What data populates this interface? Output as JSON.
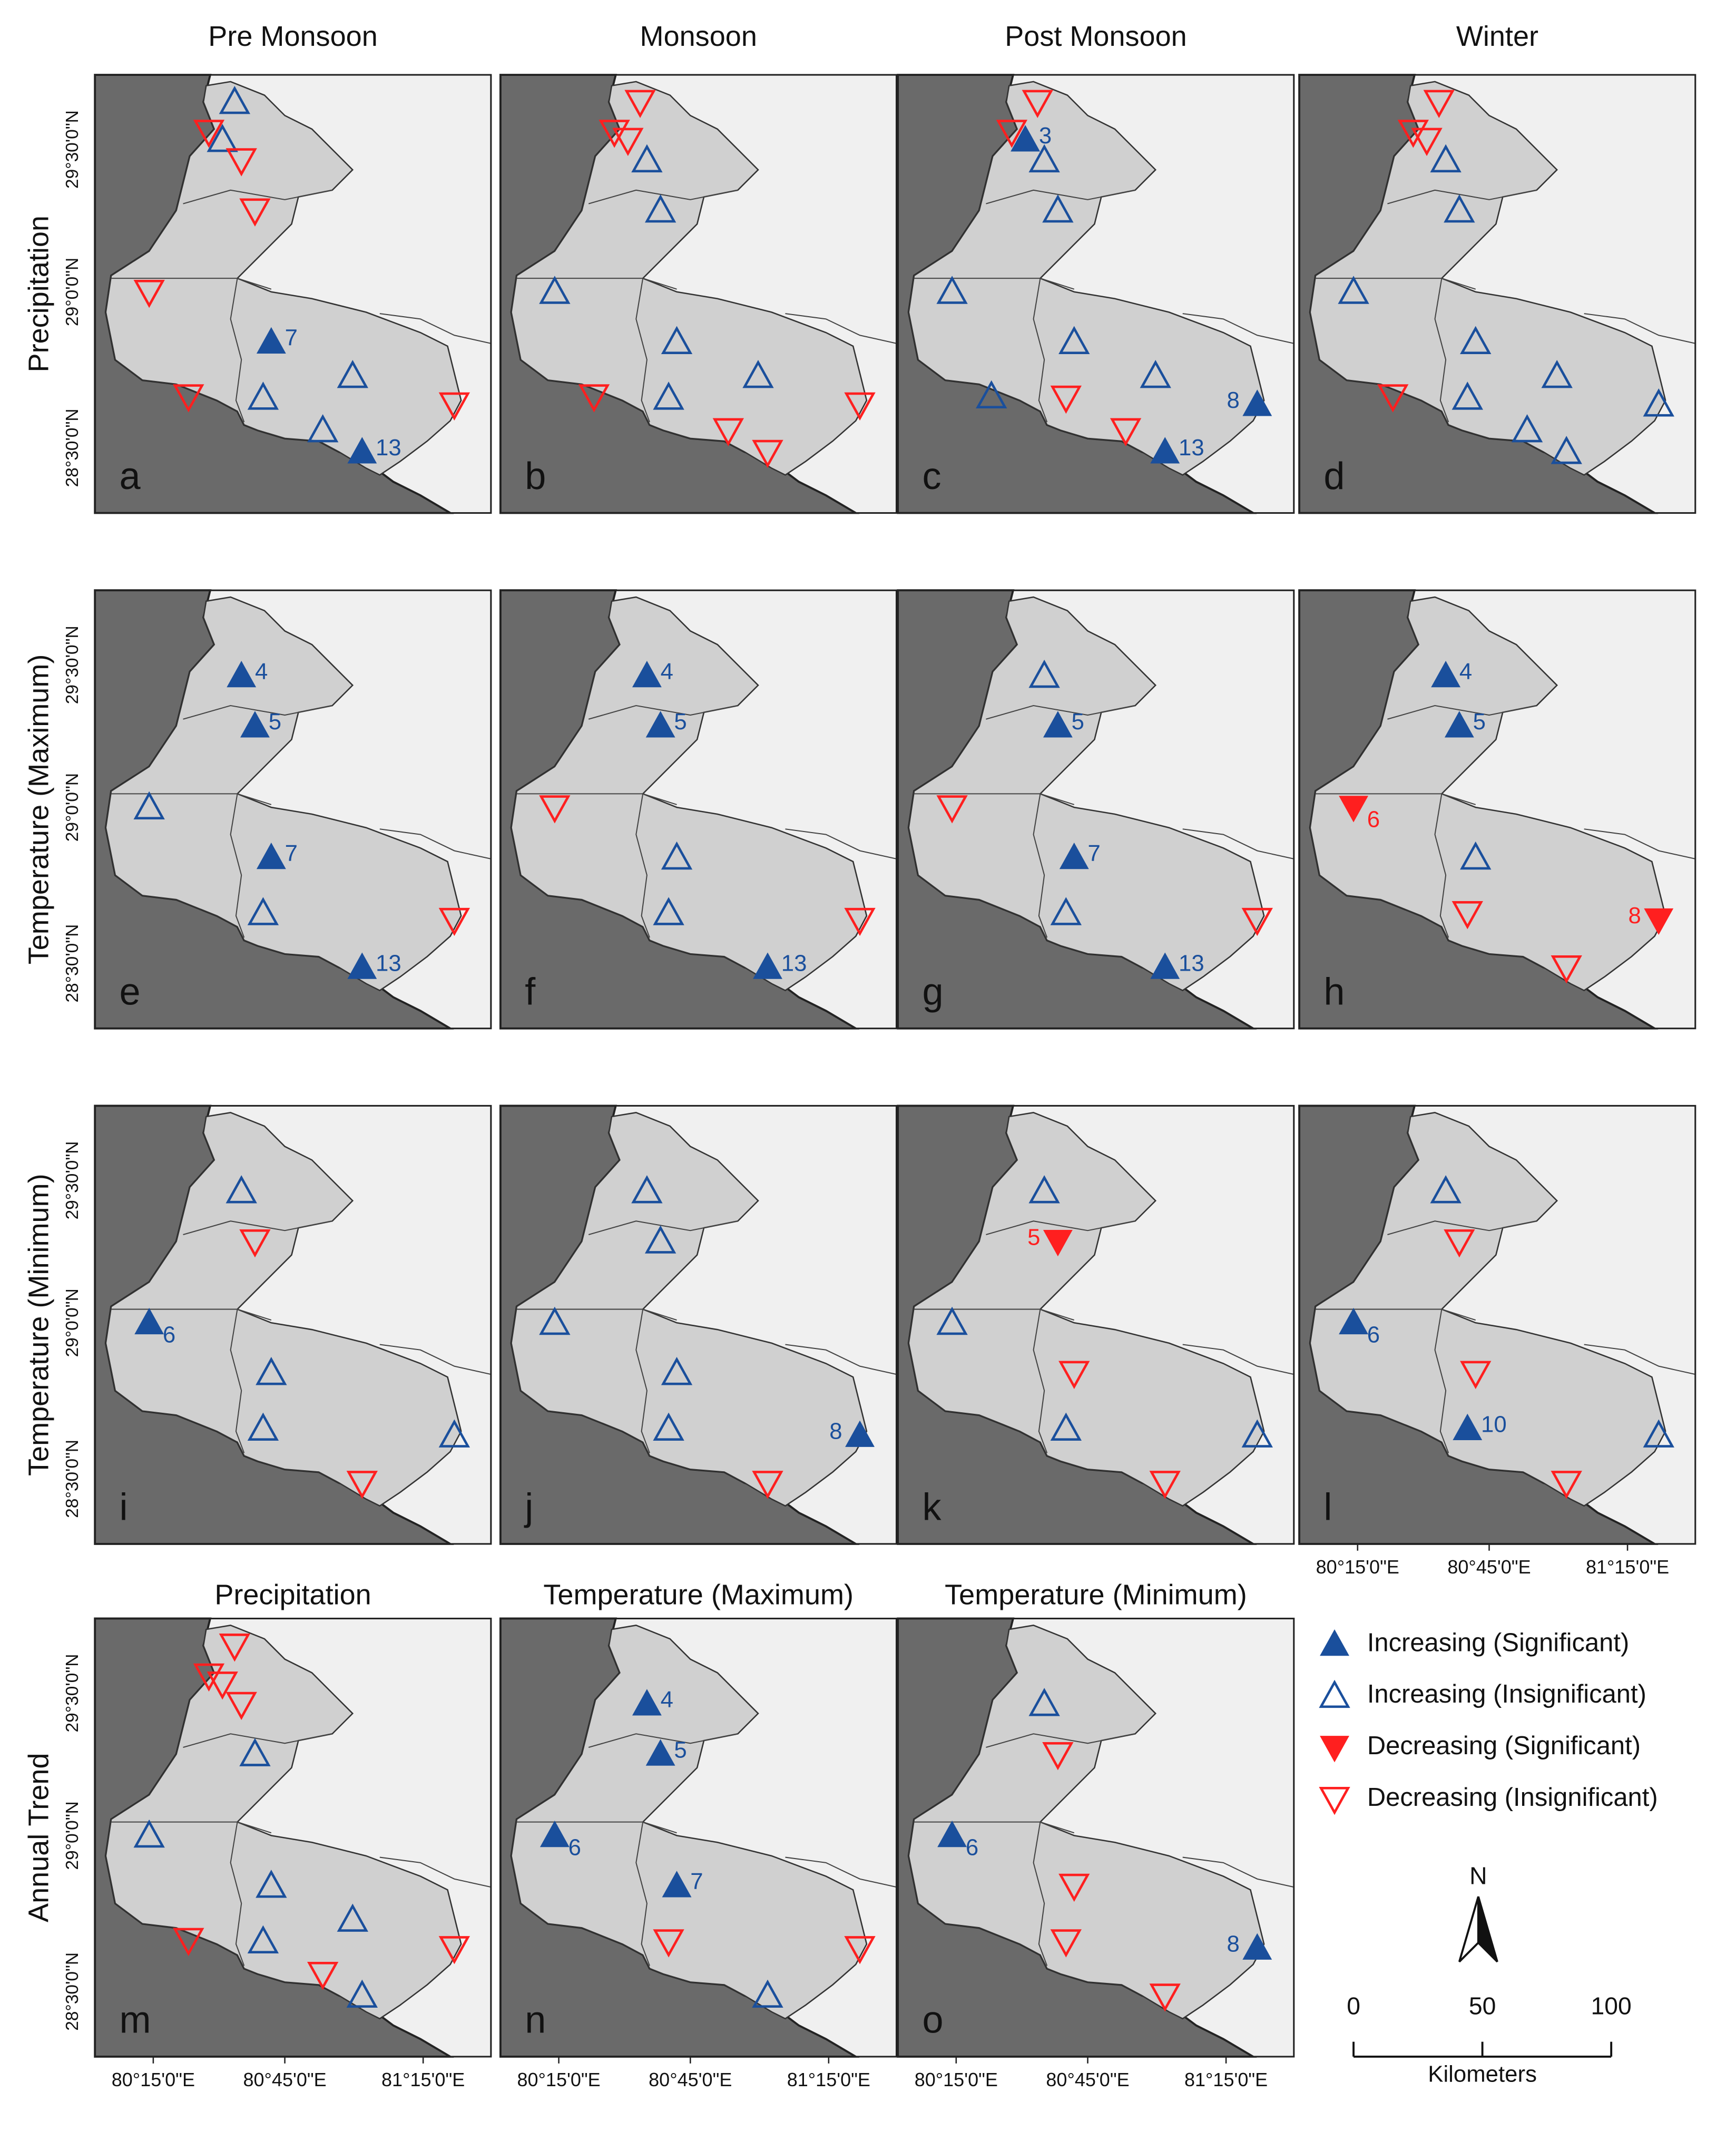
{
  "column_titles": [
    "Pre Monsoon",
    "Monsoon",
    "Post Monsoon",
    "Winter"
  ],
  "row_titles": [
    "Precipitation",
    "Temperature (Maximum)",
    "Temperature (Minimum)",
    "Annual Trend"
  ],
  "annual_titles": [
    "Precipitation",
    "Temperature (Maximum)",
    "Temperature (Minimum)"
  ],
  "lat_labels": [
    "29°30'0\"N",
    "29°0'0\"N",
    "28°30'0\"N"
  ],
  "lon_labels": [
    "80°15'0\"E",
    "80°45'0\"E",
    "81°15'0\"E"
  ],
  "colors": {
    "increasing": "#1a4f9c",
    "decreasing": "#ff1f1f"
  },
  "panels": [
    {
      "letter": "a",
      "markers": [
        {
          "trend": "increasing",
          "significant": false
        },
        {
          "trend": "decreasing",
          "significant": false
        },
        {
          "trend": "increasing",
          "significant": false
        },
        {
          "trend": "decreasing",
          "significant": false
        },
        {
          "trend": "decreasing",
          "significant": false
        },
        {
          "trend": "decreasing",
          "significant": false
        },
        {
          "trend": "increasing",
          "significant": true,
          "label": "7"
        },
        {
          "trend": "decreasing",
          "significant": false
        },
        {
          "trend": "increasing",
          "significant": false
        },
        {
          "trend": "increasing",
          "significant": false
        },
        {
          "trend": "increasing",
          "significant": false
        },
        {
          "trend": "increasing",
          "significant": true,
          "label": "13"
        },
        {
          "trend": "decreasing",
          "significant": false
        }
      ]
    },
    {
      "letter": "b",
      "markers": [
        {
          "trend": "decreasing",
          "significant": false
        },
        {
          "trend": "decreasing",
          "significant": false
        },
        {
          "trend": "decreasing",
          "significant": false
        },
        {
          "trend": "increasing",
          "significant": false
        },
        {
          "trend": "increasing",
          "significant": false
        },
        {
          "trend": "increasing",
          "significant": false
        },
        {
          "trend": "increasing",
          "significant": false
        },
        {
          "trend": "decreasing",
          "significant": false
        },
        {
          "trend": "increasing",
          "significant": false
        },
        {
          "trend": "increasing",
          "significant": false
        },
        {
          "trend": "decreasing",
          "significant": false
        },
        {
          "trend": "decreasing",
          "significant": false
        },
        {
          "trend": "decreasing",
          "significant": false
        }
      ]
    },
    {
      "letter": "c",
      "markers": [
        {
          "trend": "decreasing",
          "significant": false
        },
        {
          "trend": "decreasing",
          "significant": false
        },
        {
          "trend": "increasing",
          "significant": true,
          "label": "3"
        },
        {
          "trend": "increasing",
          "significant": false
        },
        {
          "trend": "increasing",
          "significant": false
        },
        {
          "trend": "increasing",
          "significant": false
        },
        {
          "trend": "increasing",
          "significant": false
        },
        {
          "trend": "increasing",
          "significant": false
        },
        {
          "trend": "decreasing",
          "significant": false
        },
        {
          "trend": "increasing",
          "significant": false
        },
        {
          "trend": "decreasing",
          "significant": false
        },
        {
          "trend": "increasing",
          "significant": true,
          "label": "13"
        },
        {
          "trend": "increasing",
          "significant": true,
          "label": "8"
        }
      ]
    },
    {
      "letter": "d",
      "markers": [
        {
          "trend": "decreasing",
          "significant": false
        },
        {
          "trend": "decreasing",
          "significant": false
        },
        {
          "trend": "decreasing",
          "significant": false
        },
        {
          "trend": "increasing",
          "significant": false
        },
        {
          "trend": "increasing",
          "significant": false
        },
        {
          "trend": "increasing",
          "significant": false
        },
        {
          "trend": "increasing",
          "significant": false
        },
        {
          "trend": "decreasing",
          "significant": false
        },
        {
          "trend": "increasing",
          "significant": false
        },
        {
          "trend": "increasing",
          "significant": false
        },
        {
          "trend": "increasing",
          "significant": false
        },
        {
          "trend": "increasing",
          "significant": false
        },
        {
          "trend": "increasing",
          "significant": false
        }
      ]
    },
    {
      "letter": "e",
      "markers": [
        null,
        null,
        null,
        {
          "trend": "increasing",
          "significant": true,
          "label": "4"
        },
        {
          "trend": "increasing",
          "significant": true,
          "label": "5"
        },
        {
          "trend": "increasing",
          "significant": false
        },
        {
          "trend": "increasing",
          "significant": true,
          "label": "7"
        },
        null,
        {
          "trend": "increasing",
          "significant": false
        },
        null,
        null,
        {
          "trend": "increasing",
          "significant": true,
          "label": "13"
        },
        {
          "trend": "decreasing",
          "significant": false
        }
      ]
    },
    {
      "letter": "f",
      "markers": [
        null,
        null,
        null,
        {
          "trend": "increasing",
          "significant": true,
          "label": "4"
        },
        {
          "trend": "increasing",
          "significant": true,
          "label": "5"
        },
        {
          "trend": "decreasing",
          "significant": false
        },
        {
          "trend": "increasing",
          "significant": false
        },
        null,
        {
          "trend": "increasing",
          "significant": false
        },
        null,
        null,
        {
          "trend": "increasing",
          "significant": true,
          "label": "13"
        },
        {
          "trend": "decreasing",
          "significant": false
        }
      ]
    },
    {
      "letter": "g",
      "markers": [
        null,
        null,
        null,
        {
          "trend": "increasing",
          "significant": false
        },
        {
          "trend": "increasing",
          "significant": true,
          "label": "5"
        },
        {
          "trend": "decreasing",
          "significant": false
        },
        {
          "trend": "increasing",
          "significant": true,
          "label": "7"
        },
        null,
        {
          "trend": "increasing",
          "significant": false
        },
        null,
        null,
        {
          "trend": "increasing",
          "significant": true,
          "label": "13"
        },
        {
          "trend": "decreasing",
          "significant": false
        }
      ]
    },
    {
      "letter": "h",
      "markers": [
        null,
        null,
        null,
        {
          "trend": "increasing",
          "significant": true,
          "label": "4"
        },
        {
          "trend": "increasing",
          "significant": true,
          "label": "5"
        },
        {
          "trend": "decreasing",
          "significant": true,
          "label": "6"
        },
        {
          "trend": "increasing",
          "significant": false
        },
        null,
        {
          "trend": "decreasing",
          "significant": false
        },
        null,
        null,
        {
          "trend": "decreasing",
          "significant": false
        },
        {
          "trend": "decreasing",
          "significant": true,
          "label": "8"
        }
      ]
    },
    {
      "letter": "i",
      "markers": [
        null,
        null,
        null,
        {
          "trend": "increasing",
          "significant": false
        },
        {
          "trend": "decreasing",
          "significant": false
        },
        {
          "trend": "increasing",
          "significant": true,
          "label": "6"
        },
        {
          "trend": "increasing",
          "significant": false
        },
        null,
        {
          "trend": "increasing",
          "significant": false
        },
        null,
        null,
        {
          "trend": "decreasing",
          "significant": false
        },
        {
          "trend": "increasing",
          "significant": false
        }
      ]
    },
    {
      "letter": "j",
      "markers": [
        null,
        null,
        null,
        {
          "trend": "increasing",
          "significant": false
        },
        {
          "trend": "increasing",
          "significant": false
        },
        {
          "trend": "increasing",
          "significant": false
        },
        {
          "trend": "increasing",
          "significant": false
        },
        null,
        {
          "trend": "increasing",
          "significant": false
        },
        null,
        null,
        {
          "trend": "decreasing",
          "significant": false
        },
        {
          "trend": "increasing",
          "significant": true,
          "label": "8"
        }
      ]
    },
    {
      "letter": "k",
      "markers": [
        null,
        null,
        null,
        {
          "trend": "increasing",
          "significant": false
        },
        {
          "trend": "decreasing",
          "significant": true,
          "label": "5"
        },
        {
          "trend": "increasing",
          "significant": false
        },
        {
          "trend": "decreasing",
          "significant": false
        },
        null,
        {
          "trend": "increasing",
          "significant": false
        },
        null,
        null,
        {
          "trend": "decreasing",
          "significant": false
        },
        {
          "trend": "increasing",
          "significant": false
        }
      ]
    },
    {
      "letter": "l",
      "markers": [
        null,
        null,
        null,
        {
          "trend": "increasing",
          "significant": false
        },
        {
          "trend": "decreasing",
          "significant": false
        },
        {
          "trend": "increasing",
          "significant": true,
          "label": "6"
        },
        {
          "trend": "decreasing",
          "significant": false
        },
        null,
        {
          "trend": "increasing",
          "significant": true,
          "label": "10"
        },
        null,
        null,
        {
          "trend": "decreasing",
          "significant": false
        },
        {
          "trend": "increasing",
          "significant": false
        }
      ]
    },
    {
      "letter": "m",
      "markers": [
        {
          "trend": "decreasing",
          "significant": false
        },
        {
          "trend": "decreasing",
          "significant": false
        },
        {
          "trend": "decreasing",
          "significant": false
        },
        {
          "trend": "decreasing",
          "significant": false
        },
        {
          "trend": "increasing",
          "significant": false
        },
        {
          "trend": "increasing",
          "significant": false
        },
        {
          "trend": "increasing",
          "significant": false
        },
        {
          "trend": "decreasing",
          "significant": false
        },
        {
          "trend": "increasing",
          "significant": false
        },
        {
          "trend": "increasing",
          "significant": false
        },
        {
          "trend": "decreasing",
          "significant": false
        },
        {
          "trend": "increasing",
          "significant": false
        },
        {
          "trend": "decreasing",
          "significant": false
        }
      ]
    },
    {
      "letter": "n",
      "markers": [
        null,
        null,
        null,
        {
          "trend": "increasing",
          "significant": true,
          "label": "4"
        },
        {
          "trend": "increasing",
          "significant": true,
          "label": "5"
        },
        {
          "trend": "increasing",
          "significant": true,
          "label": "6"
        },
        {
          "trend": "increasing",
          "significant": true,
          "label": "7"
        },
        null,
        {
          "trend": "decreasing",
          "significant": false
        },
        null,
        null,
        {
          "trend": "increasing",
          "significant": false
        },
        {
          "trend": "decreasing",
          "significant": false
        }
      ]
    },
    {
      "letter": "o",
      "markers": [
        null,
        null,
        null,
        {
          "trend": "increasing",
          "significant": false
        },
        {
          "trend": "decreasing",
          "significant": false
        },
        {
          "trend": "increasing",
          "significant": true,
          "label": "6"
        },
        {
          "trend": "decreasing",
          "significant": false
        },
        null,
        {
          "trend": "decreasing",
          "significant": false
        },
        null,
        null,
        {
          "trend": "decreasing",
          "significant": false
        },
        {
          "trend": "increasing",
          "significant": true,
          "label": "8"
        }
      ]
    }
  ],
  "legend": [
    {
      "label": "Increasing (Significant)",
      "trend": "increasing",
      "significant": true
    },
    {
      "label": "Increasing (Insignificant)",
      "trend": "increasing",
      "significant": false
    },
    {
      "label": "Decreasing (Significant)",
      "trend": "decreasing",
      "significant": true
    },
    {
      "label": "Decreasing (Insignificant)",
      "trend": "decreasing",
      "significant": false
    }
  ],
  "north": "N",
  "scale": {
    "ticks": [
      0,
      50,
      100
    ],
    "unit": "Kilometers"
  }
}
